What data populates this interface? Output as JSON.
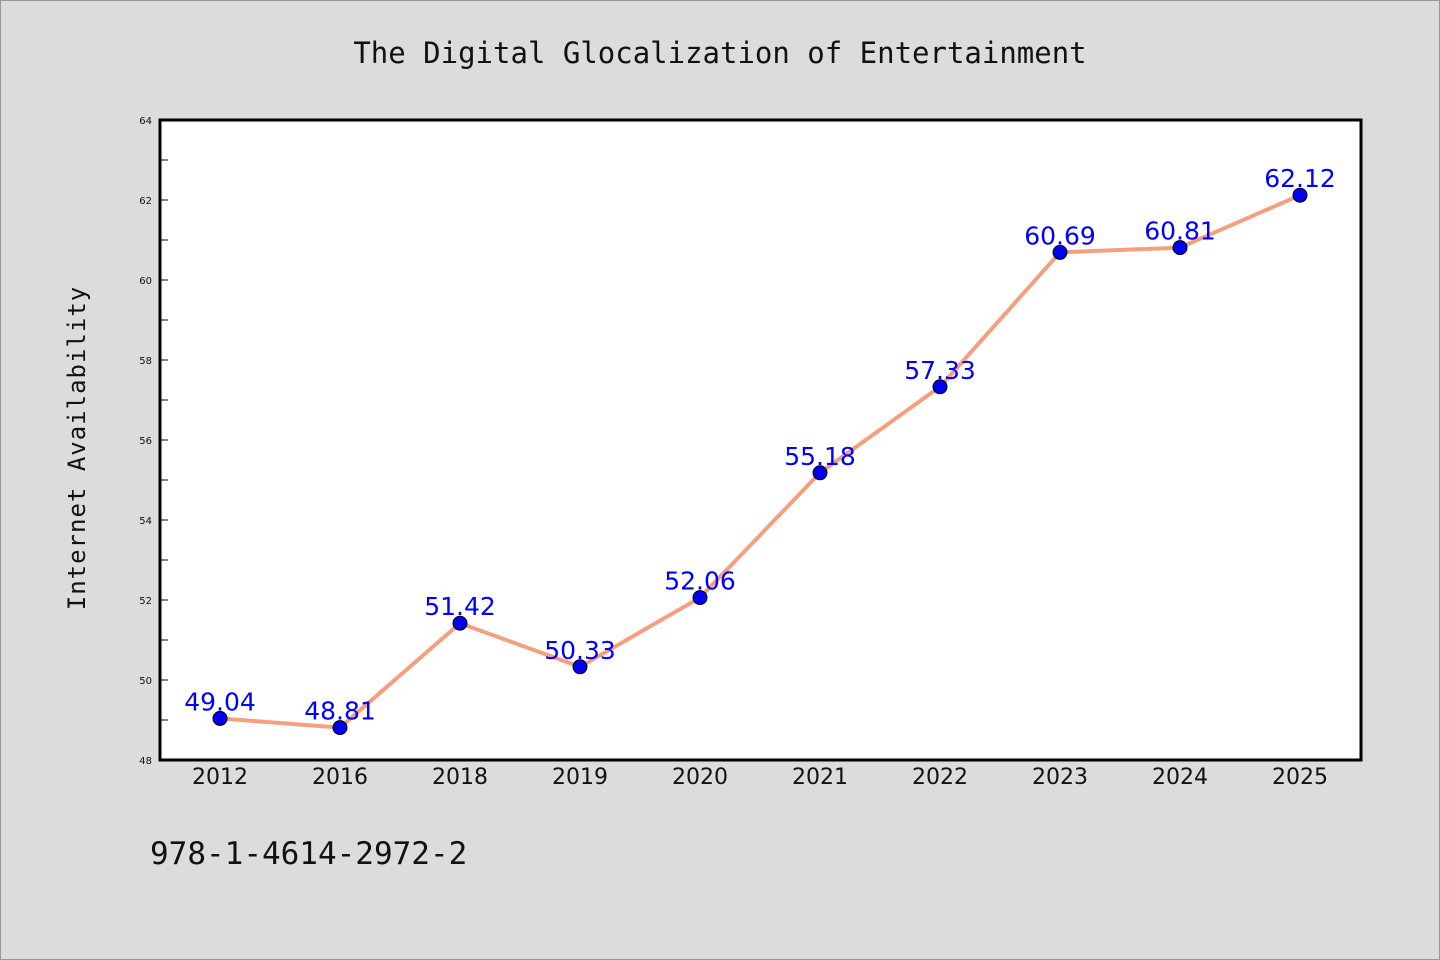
{
  "chart_data": {
    "type": "line",
    "title": "The Digital Glocalization of Entertainment",
    "ylabel": "Internet Availability",
    "xlabel": "",
    "categories": [
      "2012",
      "2016",
      "2018",
      "2019",
      "2020",
      "2021",
      "2022",
      "2023",
      "2024",
      "2025"
    ],
    "values": [
      49.04,
      48.81,
      51.42,
      50.33,
      52.06,
      55.18,
      57.33,
      60.69,
      60.81,
      62.12
    ],
    "data_labels": [
      "49.04",
      "48.81",
      "51.42",
      "50.33",
      "52.06",
      "55.18",
      "57.33",
      "60.69",
      "60.81",
      "62.12"
    ],
    "ylim": [
      48,
      64
    ],
    "yticks": [
      48,
      50,
      52,
      54,
      56,
      58,
      60,
      62,
      64
    ],
    "ytick_labels": [
      "48",
      "50",
      "52",
      "54",
      "56",
      "58",
      "60",
      "62",
      "64"
    ],
    "grid": false,
    "legend": "none",
    "colors": {
      "line": "#f4a07e",
      "marker": "#0000ee",
      "label": "#0000ff",
      "background": "#dcdcdc",
      "plot_background": "#ffffff"
    }
  },
  "footer": {
    "code": "978-1-4614-2972-2"
  }
}
